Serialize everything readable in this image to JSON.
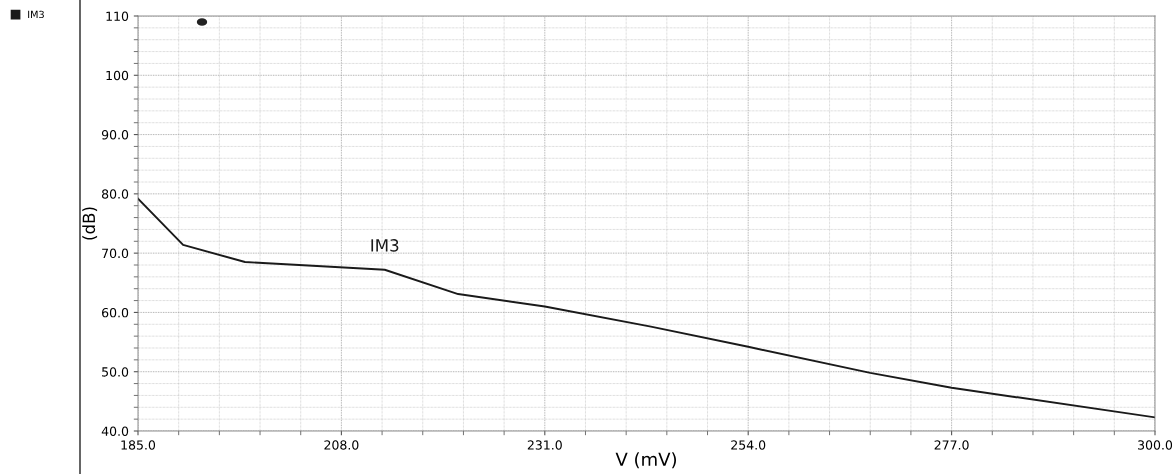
{
  "chart_data": {
    "type": "line",
    "xlabel": "V (mV)",
    "ylabel": "(dB)",
    "xlim": [
      185,
      300
    ],
    "xticks": [
      {
        "value": 185,
        "label": "185.0"
      },
      {
        "value": 208,
        "label": "208.0"
      },
      {
        "value": 231,
        "label": "231.0"
      },
      {
        "value": 254,
        "label": "254.0"
      },
      {
        "value": 277,
        "label": "277.0"
      },
      {
        "value": 300,
        "label": "300.0"
      }
    ],
    "ylim": [
      40,
      110
    ],
    "yticks": [
      {
        "value": 40,
        "label": "40.0"
      },
      {
        "value": 50,
        "label": "50.0"
      },
      {
        "value": 60,
        "label": "60.0"
      },
      {
        "value": 70,
        "label": "70.0"
      },
      {
        "value": 80,
        "label": "80.0"
      },
      {
        "value": 90,
        "label": "90.0"
      },
      100,
      110
    ],
    "grid": true,
    "legend": "top left",
    "marker": "none",
    "line_style": "solid",
    "series": [
      {
        "name": "IM3",
        "color": "#1a1a1a",
        "x": [
          185,
          190.1,
          197.1,
          212.9,
          221.2,
          231,
          243,
          254,
          267.8,
          277,
          300
        ],
        "values": [
          79.2,
          71.4,
          68.5,
          67.2,
          63.1,
          61.0,
          57.6,
          54.2,
          49.8,
          47.3,
          42.3
        ]
      }
    ]
  }
}
